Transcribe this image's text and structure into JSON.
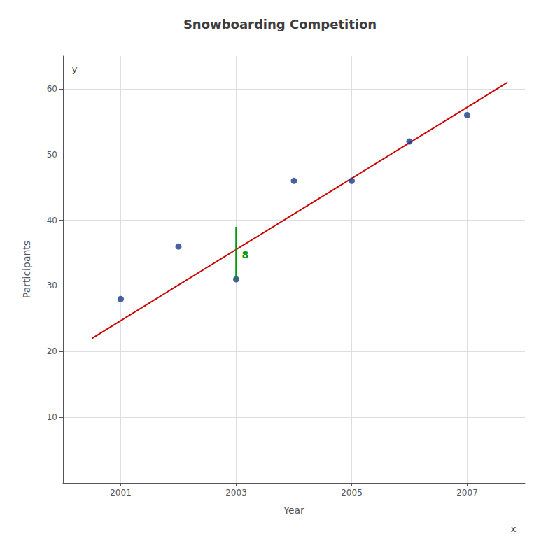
{
  "chart_data": {
    "type": "scatter",
    "title": "Snowboarding Competition",
    "x_label": "Year",
    "y_label": "Participants",
    "x": [
      2001,
      2002,
      2003,
      2004,
      2005,
      2006,
      2007
    ],
    "values": [
      28,
      36,
      31,
      46,
      46,
      52,
      56
    ],
    "color": "#1a3a8a",
    "regression": {
      "x": [
        2000.5,
        2007.7
      ],
      "values": [
        22,
        61
      ],
      "color": "#cc0000"
    },
    "difference": {
      "text": "8",
      "x": 2003,
      "values": [
        31,
        39
      ],
      "color": "#009900"
    },
    "annotations": [
      {
        "text": "y",
        "x": 2000.2,
        "y": 63
      },
      {
        "text": "x",
        "x": 2007.8,
        "y": -7
      }
    ],
    "xlim": [
      2000,
      2008
    ],
    "xticks": [
      2001,
      2003,
      2005,
      2007
    ],
    "ylim": [
      0,
      65
    ],
    "yticks": [
      10,
      20,
      30,
      40,
      50,
      60
    ],
    "grid": true
  }
}
